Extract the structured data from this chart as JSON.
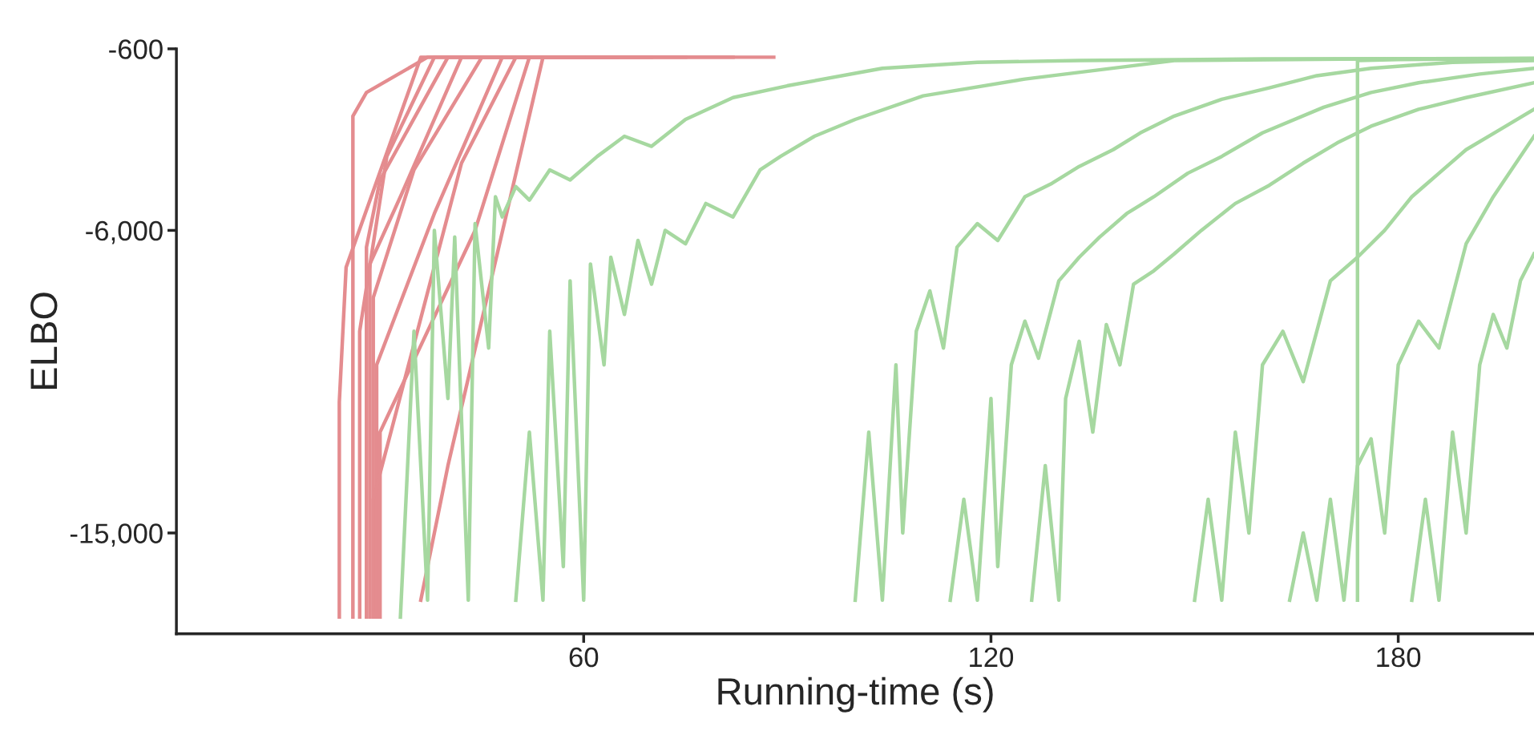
{
  "chart_data": {
    "type": "line",
    "xlabel": "Running-time (s)",
    "ylabel": "ELBO",
    "xlim": [
      0,
      200
    ],
    "ylim": [
      -18000,
      -600
    ],
    "xticks": [
      60,
      120,
      180
    ],
    "yticks": [
      {
        "value": -600,
        "label": "-600"
      },
      {
        "value": -6000,
        "label": "-6,000"
      },
      {
        "value": -15000,
        "label": "-15,000"
      }
    ],
    "grid": false,
    "series": [
      {
        "color": "#e48c8f",
        "x": [
          24,
          24,
          25,
          36,
          60
        ],
        "values": [
          -17500,
          -11100,
          -7100,
          -850,
          -850
        ]
      },
      {
        "color": "#e48c8f",
        "x": [
          26,
          26,
          28,
          37,
          88
        ],
        "values": [
          -17500,
          -2600,
          -1900,
          -850,
          -850
        ]
      },
      {
        "color": "#e48c8f",
        "x": [
          27,
          27,
          31,
          38,
          82
        ],
        "values": [
          -17500,
          -9000,
          -3800,
          -850,
          -850
        ]
      },
      {
        "color": "#e48c8f",
        "x": [
          28,
          28,
          30,
          40,
          70
        ],
        "values": [
          -17500,
          -6500,
          -4500,
          -850,
          -850
        ]
      },
      {
        "color": "#e48c8f",
        "x": [
          28.5,
          28.5,
          33,
          42,
          65
        ],
        "values": [
          -17500,
          -7000,
          -5000,
          -850,
          -850
        ]
      },
      {
        "color": "#e48c8f",
        "x": [
          29,
          29,
          35,
          45,
          60
        ],
        "values": [
          -17500,
          -8000,
          -4200,
          -850,
          -850
        ]
      },
      {
        "color": "#e48c8f",
        "x": [
          29.5,
          29.5,
          38,
          48,
          62
        ],
        "values": [
          -17500,
          -10000,
          -5500,
          -850,
          -850
        ]
      },
      {
        "color": "#e48c8f",
        "x": [
          30,
          30,
          44,
          52,
          65
        ],
        "values": [
          -17500,
          -12000,
          -6000,
          -850,
          -850
        ]
      },
      {
        "color": "#e48c8f",
        "x": [
          36,
          40,
          54,
          68
        ],
        "values": [
          -17000,
          -13000,
          -850,
          -850
        ]
      },
      {
        "color": "#e48c8f",
        "x": [
          29,
          29,
          42,
          50,
          75
        ],
        "values": [
          -17500,
          -14000,
          -4000,
          -850,
          -850
        ]
      },
      {
        "color": "#a6d8a0",
        "x": [
          33,
          35,
          37,
          38,
          40,
          41,
          43,
          44,
          46,
          47,
          48,
          50,
          52,
          55,
          58,
          62,
          66,
          70,
          75,
          82,
          90,
          104,
          118,
          133,
          160,
          200
        ],
        "values": [
          -17500,
          -9000,
          -17000,
          -6000,
          -11000,
          -6200,
          -17000,
          -5800,
          -9500,
          -5000,
          -5600,
          -4700,
          -5100,
          -4200,
          -4500,
          -3800,
          -3200,
          -3500,
          -2700,
          -2050,
          -1700,
          -1180,
          -1000,
          -950,
          -900,
          -890
        ]
      },
      {
        "color": "#a6d8a0",
        "x": [
          50,
          52,
          54,
          55,
          57,
          58,
          60,
          61,
          63,
          64,
          66,
          68,
          70,
          72,
          75,
          78,
          82,
          86,
          89,
          94,
          100,
          110,
          125,
          147,
          175,
          200
        ],
        "values": [
          -17000,
          -12000,
          -17000,
          -9000,
          -16000,
          -7500,
          -17000,
          -7000,
          -10000,
          -6800,
          -8500,
          -6300,
          -7600,
          -6000,
          -6400,
          -5200,
          -5600,
          -4200,
          -3800,
          -3200,
          -2700,
          -2000,
          -1500,
          -950,
          -900,
          -890
        ]
      },
      {
        "color": "#a6d8a0",
        "x": [
          100,
          102,
          104,
          106,
          107,
          109,
          111,
          113,
          115,
          118,
          121,
          125,
          129,
          133,
          138,
          142,
          147,
          154,
          161,
          168,
          176,
          188,
          200
        ],
        "values": [
          -17000,
          -12000,
          -17000,
          -10000,
          -15000,
          -9000,
          -7800,
          -9500,
          -6500,
          -5800,
          -6300,
          -5000,
          -4600,
          -4100,
          -3600,
          -3100,
          -2600,
          -2100,
          -1760,
          -1400,
          -1180,
          -1000,
          -950
        ]
      },
      {
        "color": "#a6d8a0",
        "x": [
          114,
          116,
          118,
          120,
          121,
          123,
          125,
          127,
          130,
          133,
          136,
          140,
          144,
          149,
          154,
          160,
          169,
          176,
          183,
          192,
          200
        ],
        "values": [
          -17000,
          -14000,
          -17000,
          -11000,
          -16000,
          -10000,
          -8700,
          -9800,
          -7500,
          -6800,
          -6200,
          -5500,
          -5000,
          -4300,
          -3800,
          -3100,
          -2340,
          -1900,
          -1610,
          -1350,
          -1180
        ]
      },
      {
        "color": "#a6d8a0",
        "x": [
          126,
          128,
          130,
          131,
          133,
          135,
          137,
          139,
          141,
          144,
          147,
          151,
          156,
          161,
          166,
          171,
          176,
          183,
          190,
          200
        ],
        "values": [
          -17000,
          -13000,
          -17000,
          -11000,
          -9300,
          -12000,
          -8800,
          -10000,
          -7600,
          -7200,
          -6700,
          -6000,
          -5200,
          -4660,
          -4000,
          -3400,
          -2900,
          -2400,
          -2050,
          -1610
        ]
      },
      {
        "color": "#a6d8a0",
        "x": [
          150,
          152,
          154,
          156,
          158,
          160,
          163,
          166,
          170,
          174,
          178,
          182,
          186,
          190,
          195,
          200
        ],
        "values": [
          -17000,
          -14000,
          -17000,
          -12000,
          -15000,
          -10000,
          -9000,
          -10500,
          -7500,
          -6800,
          -6000,
          -5000,
          -4300,
          -3600,
          -3000,
          -2400
        ]
      },
      {
        "color": "#a6d8a0",
        "x": [
          164,
          166,
          168,
          170,
          172,
          174,
          176,
          178,
          180,
          183,
          186,
          190,
          194,
          200
        ],
        "values": [
          -17000,
          -15000,
          -17000,
          -14000,
          -17000,
          -13000,
          -12200,
          -15000,
          -10000,
          -8700,
          -9500,
          -6400,
          -5000,
          -3200
        ]
      },
      {
        "color": "#a6d8a0",
        "x": [
          174,
          174,
          180,
          190,
          200
        ],
        "values": [
          -17000,
          -950,
          -920,
          -900,
          -890
        ]
      },
      {
        "color": "#a6d8a0",
        "x": [
          182,
          184,
          186,
          188,
          190,
          192,
          194,
          196,
          198,
          200
        ],
        "values": [
          -17000,
          -14000,
          -17000,
          -12000,
          -15000,
          -10000,
          -8500,
          -9500,
          -7500,
          -6700
        ]
      }
    ]
  }
}
